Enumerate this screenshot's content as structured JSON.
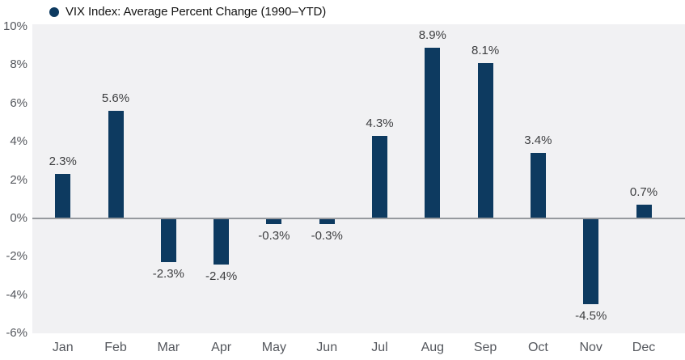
{
  "legend": {
    "label": "VIX Index: Average Percent Change (1990–YTD)"
  },
  "chart_data": {
    "type": "bar",
    "title": "VIX Index: Average Percent Change (1990–YTD)",
    "categories": [
      "Jan",
      "Feb",
      "Mar",
      "Apr",
      "May",
      "Jun",
      "Jul",
      "Aug",
      "Sep",
      "Oct",
      "Nov",
      "Dec"
    ],
    "values": [
      2.3,
      5.6,
      -2.3,
      -2.4,
      -0.3,
      -0.3,
      4.3,
      8.9,
      8.1,
      3.4,
      -4.5,
      0.7
    ],
    "data_labels": [
      "2.3%",
      "5.6%",
      "-2.3%",
      "-2.4%",
      "-0.3%",
      "-0.3%",
      "4.3%",
      "8.9%",
      "8.1%",
      "3.4%",
      "-4.5%",
      "0.7%"
    ],
    "xlabel": "",
    "ylabel": "",
    "ylim": [
      -6,
      10
    ],
    "y_ticks": [
      {
        "value": 10,
        "label": "10%"
      },
      {
        "value": 8,
        "label": "8%"
      },
      {
        "value": 6,
        "label": "6%"
      },
      {
        "value": 4,
        "label": "4%"
      },
      {
        "value": 2,
        "label": "2%"
      },
      {
        "value": 0,
        "label": "0%"
      },
      {
        "value": -2,
        "label": "-2%"
      },
      {
        "value": -4,
        "label": "-4%"
      },
      {
        "value": -6,
        "label": "-6%"
      }
    ],
    "grid": false,
    "legend_position": "top-left",
    "colors": {
      "bar": "#0d3a60",
      "plot_bg": "#f1f1f3",
      "zero_line": "#96999e",
      "axis_text": "#54575d",
      "data_label_text": "#3d3e40",
      "title_text": "#141414"
    }
  }
}
